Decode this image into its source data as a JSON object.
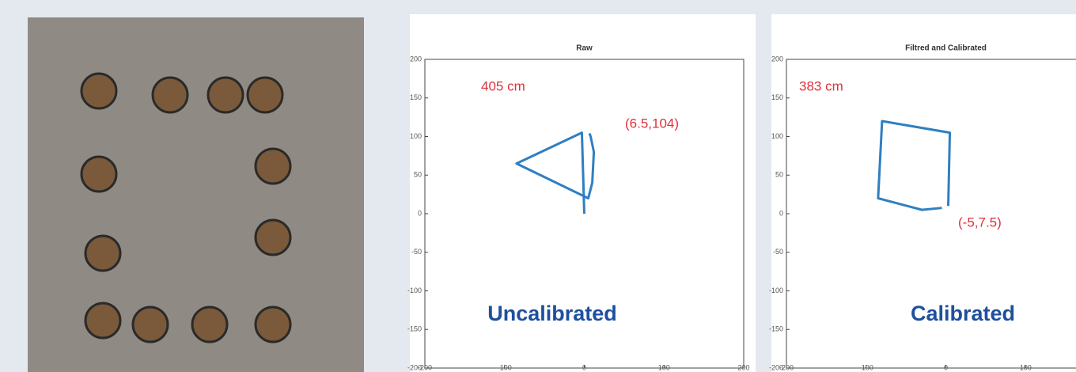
{
  "chart_data": [
    {
      "type": "line",
      "title": "Raw",
      "x": [
        0,
        -3,
        -85,
        5,
        10,
        12,
        8,
        6.5
      ],
      "series": [
        {
          "color": "#2f7fc1",
          "values": [
            0,
            105,
            65,
            20,
            40,
            80,
            100,
            104
          ]
        }
      ],
      "xlim": [
        -200,
        200
      ],
      "ylim": [
        -200,
        200
      ],
      "xticks": [
        -200,
        -100,
        0,
        100,
        200
      ],
      "yticks": [
        -200,
        -150,
        -100,
        -50,
        0,
        50,
        100,
        150,
        200
      ],
      "annotations": [
        "405 cm",
        "(6.5,104)",
        "Uncalibrated"
      ]
    },
    {
      "type": "line",
      "title": "Filtred and Calibrated",
      "x": [
        3,
        5,
        -80,
        -85,
        -30,
        -5
      ],
      "series": [
        {
          "color": "#2f7fc1",
          "values": [
            10,
            105,
            120,
            20,
            5,
            7.5
          ]
        }
      ],
      "xlim": [
        -200,
        200
      ],
      "ylim": [
        -200,
        200
      ],
      "xticks": [
        -200,
        -100,
        0,
        100
      ],
      "yticks": [
        -200,
        -150,
        -100,
        -50,
        0,
        50,
        100,
        150,
        200
      ],
      "annotations": [
        "383 cm",
        "(-5,7.5)",
        "Calibrated"
      ]
    }
  ]
}
